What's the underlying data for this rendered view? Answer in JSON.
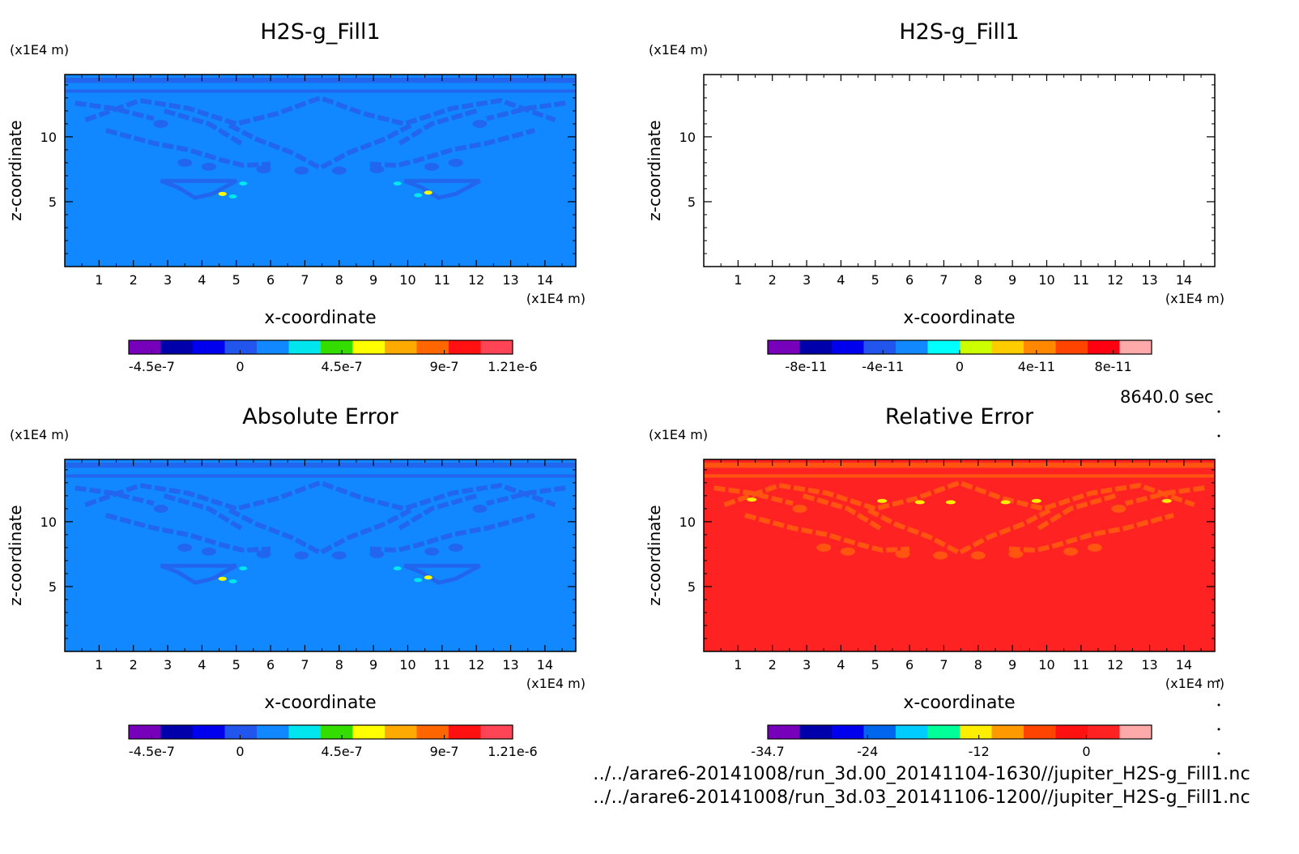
{
  "timestamp": "8640.0 sec",
  "footer": {
    "file1": "../../arare6-20141008/run_3d.00_20141104-1630//jupiter_H2S-g_Fill1.nc",
    "file2": "../../arare6-20141008/run_3d.03_20141106-1200//jupiter_H2S-g_Fill1.nc"
  },
  "colors": {
    "field_background_blue": "#1188ff",
    "field_contour_blue": "#2266ee",
    "relerr_background_red": "#ff2222",
    "relerr_contour_orange": "#ff5511",
    "empty_plot": "#ffffff"
  },
  "chart_data": [
    {
      "type": "heatmap",
      "id": "top-left",
      "title": "H2S-g_Fill1",
      "xlabel": "x-coordinate",
      "ylabel": "z-coordinate",
      "x_unit": "(x1E4 m)",
      "y_unit": "(x1E4 m)",
      "xlim": [
        0,
        14.9
      ],
      "ylim": [
        0,
        14.8
      ],
      "xticks": [
        1,
        2,
        3,
        4,
        5,
        6,
        7,
        8,
        9,
        10,
        11,
        12,
        13,
        14
      ],
      "yticks": [
        5,
        10
      ],
      "pattern": "field",
      "colorbar": {
        "colors": [
          "#7700bb",
          "#0000aa",
          "#0000ee",
          "#2255ee",
          "#1188ff",
          "#00e5ee",
          "#33dd00",
          "#ffff00",
          "#ffaa00",
          "#ff6600",
          "#ff1111",
          "#ff4455"
        ],
        "ticks": [
          {
            "label": "-4.5e-7",
            "pos": 0.06
          },
          {
            "label": "0",
            "pos": 0.29
          },
          {
            "label": "4.5e-7",
            "pos": 0.555
          },
          {
            "label": "9e-7",
            "pos": 0.822
          },
          {
            "label": "1.21e-6",
            "pos": 1.0
          }
        ]
      }
    },
    {
      "type": "heatmap",
      "id": "top-right",
      "title": "H2S-g_Fill1",
      "xlabel": "x-coordinate",
      "ylabel": "z-coordinate",
      "x_unit": "(x1E4 m)",
      "y_unit": "(x1E4 m)",
      "xlim": [
        0,
        14.9
      ],
      "ylim": [
        0,
        14.8
      ],
      "xticks": [
        1,
        2,
        3,
        4,
        5,
        6,
        7,
        8,
        9,
        10,
        11,
        12,
        13,
        14
      ],
      "yticks": [
        5,
        10
      ],
      "pattern": "empty",
      "colorbar": {
        "colors": [
          "#7700bb",
          "#0000aa",
          "#0000ee",
          "#2255ee",
          "#1188ff",
          "#00ffff",
          "#ccff00",
          "#ffcc00",
          "#ff8800",
          "#ff4400",
          "#ff0011",
          "#ffaaaa"
        ],
        "ticks": [
          {
            "label": "-8e-11",
            "pos": 0.1
          },
          {
            "label": "-4e-11",
            "pos": 0.3
          },
          {
            "label": "0",
            "pos": 0.5
          },
          {
            "label": "4e-11",
            "pos": 0.7
          },
          {
            "label": "8e-11",
            "pos": 0.9
          }
        ]
      }
    },
    {
      "type": "heatmap",
      "id": "bottom-left",
      "title": "Absolute Error",
      "xlabel": "x-coordinate",
      "ylabel": "z-coordinate",
      "x_unit": "(x1E4 m)",
      "y_unit": "(x1E4 m)",
      "xlim": [
        0,
        14.9
      ],
      "ylim": [
        0,
        14.8
      ],
      "xticks": [
        1,
        2,
        3,
        4,
        5,
        6,
        7,
        8,
        9,
        10,
        11,
        12,
        13,
        14
      ],
      "yticks": [
        5,
        10
      ],
      "pattern": "field",
      "colorbar": {
        "colors": [
          "#7700bb",
          "#0000aa",
          "#0000ee",
          "#2255ee",
          "#1188ff",
          "#00e5ee",
          "#33dd00",
          "#ffff00",
          "#ffaa00",
          "#ff6600",
          "#ff1111",
          "#ff4455"
        ],
        "ticks": [
          {
            "label": "-4.5e-7",
            "pos": 0.06
          },
          {
            "label": "0",
            "pos": 0.29
          },
          {
            "label": "4.5e-7",
            "pos": 0.555
          },
          {
            "label": "9e-7",
            "pos": 0.822
          },
          {
            "label": "1.21e-6",
            "pos": 1.0
          }
        ]
      }
    },
    {
      "type": "heatmap",
      "id": "bottom-right",
      "title": "Relative Error",
      "xlabel": "x-coordinate",
      "ylabel": "z-coordinate",
      "x_unit": "(x1E4 m)",
      "y_unit": "(x1E4 m)",
      "xlim": [
        0,
        14.9
      ],
      "ylim": [
        0,
        14.8
      ],
      "xticks": [
        1,
        2,
        3,
        4,
        5,
        6,
        7,
        8,
        9,
        10,
        11,
        12,
        13,
        14
      ],
      "yticks": [
        5,
        10
      ],
      "pattern": "relerr",
      "colorbar": {
        "colors": [
          "#7700bb",
          "#0000aa",
          "#0000ee",
          "#0066ee",
          "#00ccff",
          "#00ff99",
          "#ffee00",
          "#ff9900",
          "#ff4400",
          "#ff1111",
          "#ff2222",
          "#ffaaaa"
        ],
        "ticks": [
          {
            "label": "-34.7",
            "pos": 0.0
          },
          {
            "label": "-24",
            "pos": 0.26
          },
          {
            "label": "-12",
            "pos": 0.55
          },
          {
            "label": "0",
            "pos": 0.83
          }
        ]
      }
    }
  ]
}
